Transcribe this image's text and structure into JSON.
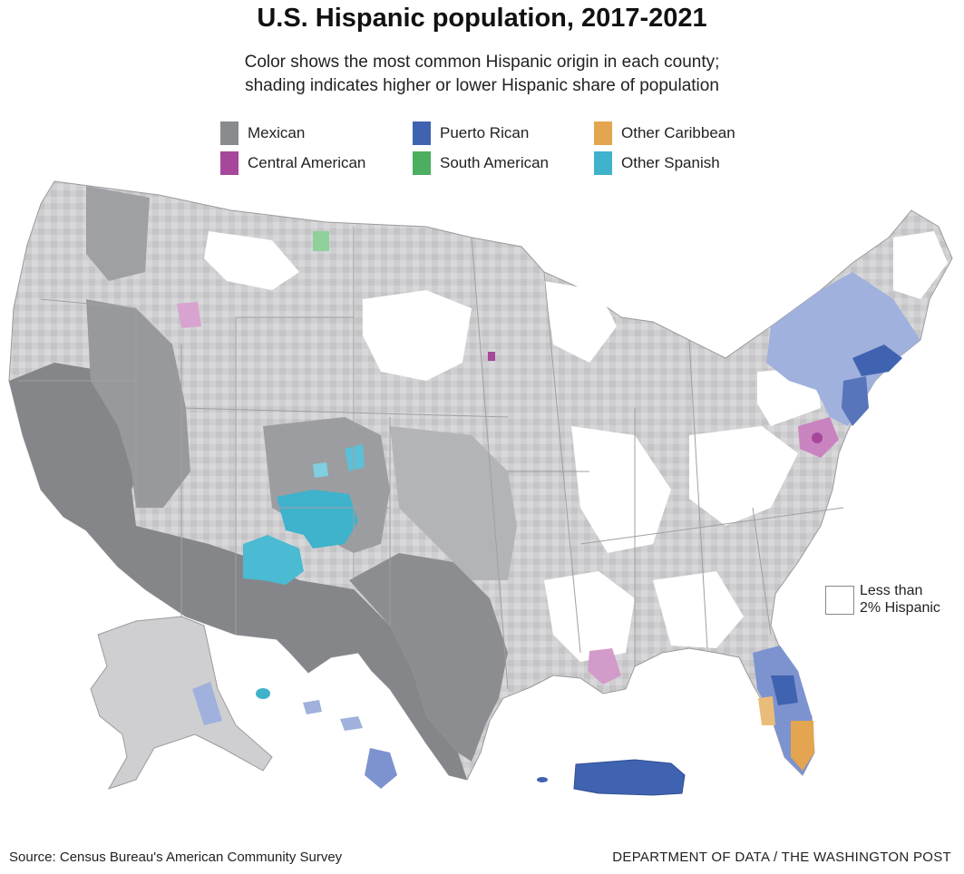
{
  "title": "U.S. Hispanic population, 2017-2021",
  "subtitle_line1": "Color shows the most common Hispanic origin in each county;",
  "subtitle_line2": "shading indicates higher or lower Hispanic share of population",
  "legend": {
    "items": [
      {
        "label": "Mexican",
        "color": "#8a8b8f"
      },
      {
        "label": "Puerto Rican",
        "color": "#3f63b0"
      },
      {
        "label": "Other Caribbean",
        "color": "#e3a54f"
      },
      {
        "label": "Central American",
        "color": "#a6479c"
      },
      {
        "label": "South American",
        "color": "#4cae5f"
      },
      {
        "label": "Other Spanish",
        "color": "#3fb2cc"
      }
    ],
    "less_than_line1": "Less than",
    "less_than_line2": "2% Hispanic"
  },
  "colors": {
    "light_gray": "#cfcfd1",
    "mid_gray": "#a9aaad",
    "dark_gray": "#7f8084",
    "light_blue": "#9fb1dc",
    "white": "#ffffff"
  },
  "footer": {
    "source": "Source: Census Bureau's American Community Survey",
    "credit": "DEPARTMENT OF DATA / THE WASHINGTON POST"
  }
}
